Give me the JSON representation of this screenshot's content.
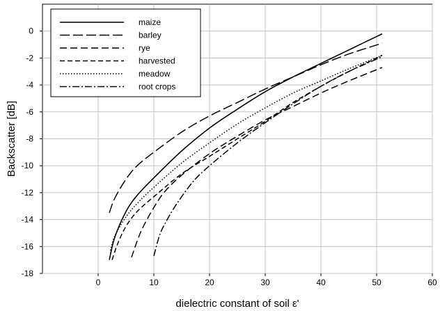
{
  "chart_data": {
    "type": "line",
    "title": "",
    "xlabel": "dielectric constant of soil ε'",
    "ylabel": "Backscatter [dB]",
    "xlim": [
      -10,
      60
    ],
    "ylim": [
      -18,
      2
    ],
    "xticks": [
      0,
      10,
      20,
      30,
      40,
      50,
      60
    ],
    "yticks": [
      -18,
      -16,
      -14,
      -12,
      -10,
      -8,
      -6,
      -4,
      -2,
      0
    ],
    "grid": true,
    "legend": "top-left",
    "series": [
      {
        "name": "maize",
        "style": "solid",
        "x": [
          2,
          3,
          5,
          7,
          10,
          15,
          20,
          25,
          30,
          35,
          40,
          45,
          51
        ],
        "y": [
          -17,
          -15.3,
          -13.4,
          -12.2,
          -10.9,
          -8.9,
          -7.2,
          -5.8,
          -4.5,
          -3.4,
          -2.4,
          -1.4,
          -0.2
        ]
      },
      {
        "name": "barley",
        "style": "long-dash",
        "x": [
          2,
          3,
          5,
          7,
          10,
          15,
          20,
          25,
          30,
          35,
          40,
          45,
          51
        ],
        "y": [
          -13.5,
          -12.4,
          -11.0,
          -10.0,
          -9.0,
          -7.5,
          -6.3,
          -5.3,
          -4.3,
          -3.4,
          -2.5,
          -1.7,
          -0.9
        ]
      },
      {
        "name": "rye",
        "style": "dash",
        "x": [
          6,
          7,
          8,
          10,
          12,
          15,
          20,
          25,
          30,
          35,
          40,
          45,
          51
        ],
        "y": [
          -16.8,
          -15.6,
          -14.6,
          -13.1,
          -11.9,
          -10.7,
          -9.1,
          -7.8,
          -6.6,
          -5.6,
          -4.6,
          -3.7,
          -2.7
        ]
      },
      {
        "name": "harvested",
        "style": "short-dash",
        "x": [
          2.5,
          3.5,
          5,
          7,
          10,
          15,
          20,
          25,
          30,
          35,
          40,
          45,
          51
        ],
        "y": [
          -17,
          -15.8,
          -14.5,
          -13.4,
          -12.3,
          -10.6,
          -9.3,
          -8.0,
          -6.7,
          -5.3,
          -4.1,
          -3.0,
          -1.8
        ]
      },
      {
        "name": "meadow",
        "style": "dotted",
        "x": [
          2.2,
          3,
          5,
          7,
          10,
          15,
          20,
          25,
          30,
          35,
          40,
          45,
          51
        ],
        "y": [
          -16.3,
          -15.2,
          -13.8,
          -12.8,
          -11.6,
          -9.8,
          -8.3,
          -6.9,
          -5.7,
          -4.6,
          -3.7,
          -2.8,
          -1.8
        ]
      },
      {
        "name": "root crops",
        "style": "dash-dot",
        "x": [
          10,
          11,
          12,
          14,
          17,
          20,
          25,
          30,
          35,
          40,
          45,
          51
        ],
        "y": [
          -16.7,
          -15.2,
          -14.3,
          -12.9,
          -11.2,
          -10.0,
          -8.3,
          -6.8,
          -5.4,
          -4.1,
          -3.0,
          -1.9
        ]
      }
    ]
  }
}
